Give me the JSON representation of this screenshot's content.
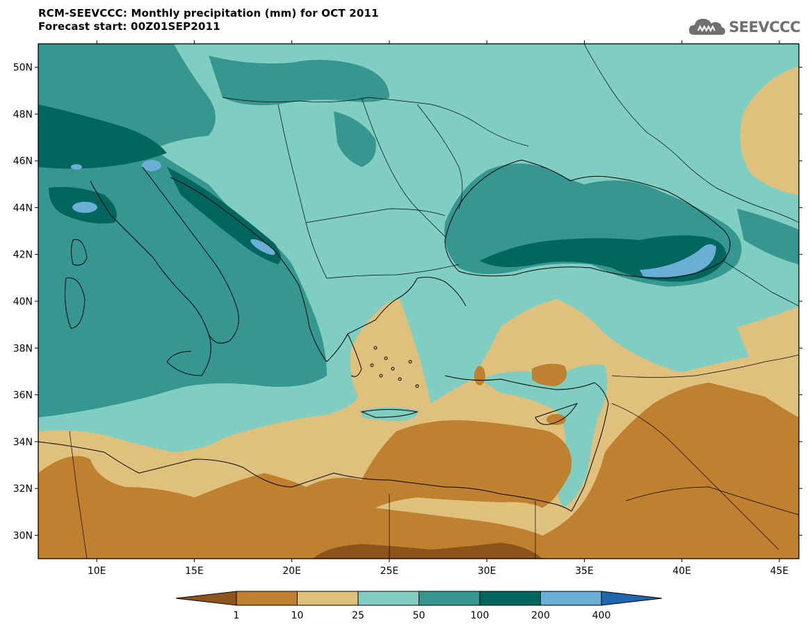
{
  "header": {
    "title": "RCM-SEEVCCC: Monthly precipitation (mm) for OCT 2011",
    "subtitle": "Forecast start: 00Z01SEP2011",
    "logo_text": "SEEVCCC",
    "logo_icon": "cloud-icon"
  },
  "map": {
    "lon_range": [
      7,
      46
    ],
    "lat_range": [
      29,
      51
    ],
    "lon_ticks": [
      "10E",
      "15E",
      "20E",
      "25E",
      "30E",
      "35E",
      "40E",
      "45E"
    ],
    "lat_ticks": [
      "30N",
      "32N",
      "34N",
      "36N",
      "38N",
      "40N",
      "42N",
      "44N",
      "46N",
      "48N",
      "50N"
    ]
  },
  "colorbar": {
    "labels": [
      "1",
      "10",
      "25",
      "50",
      "100",
      "200",
      "400"
    ],
    "colors": [
      "#8c531b",
      "#bf8030",
      "#dfc17d",
      "#80cdc1",
      "#35978f",
      "#01665e",
      "#6baed6",
      "#2166ac"
    ]
  }
}
